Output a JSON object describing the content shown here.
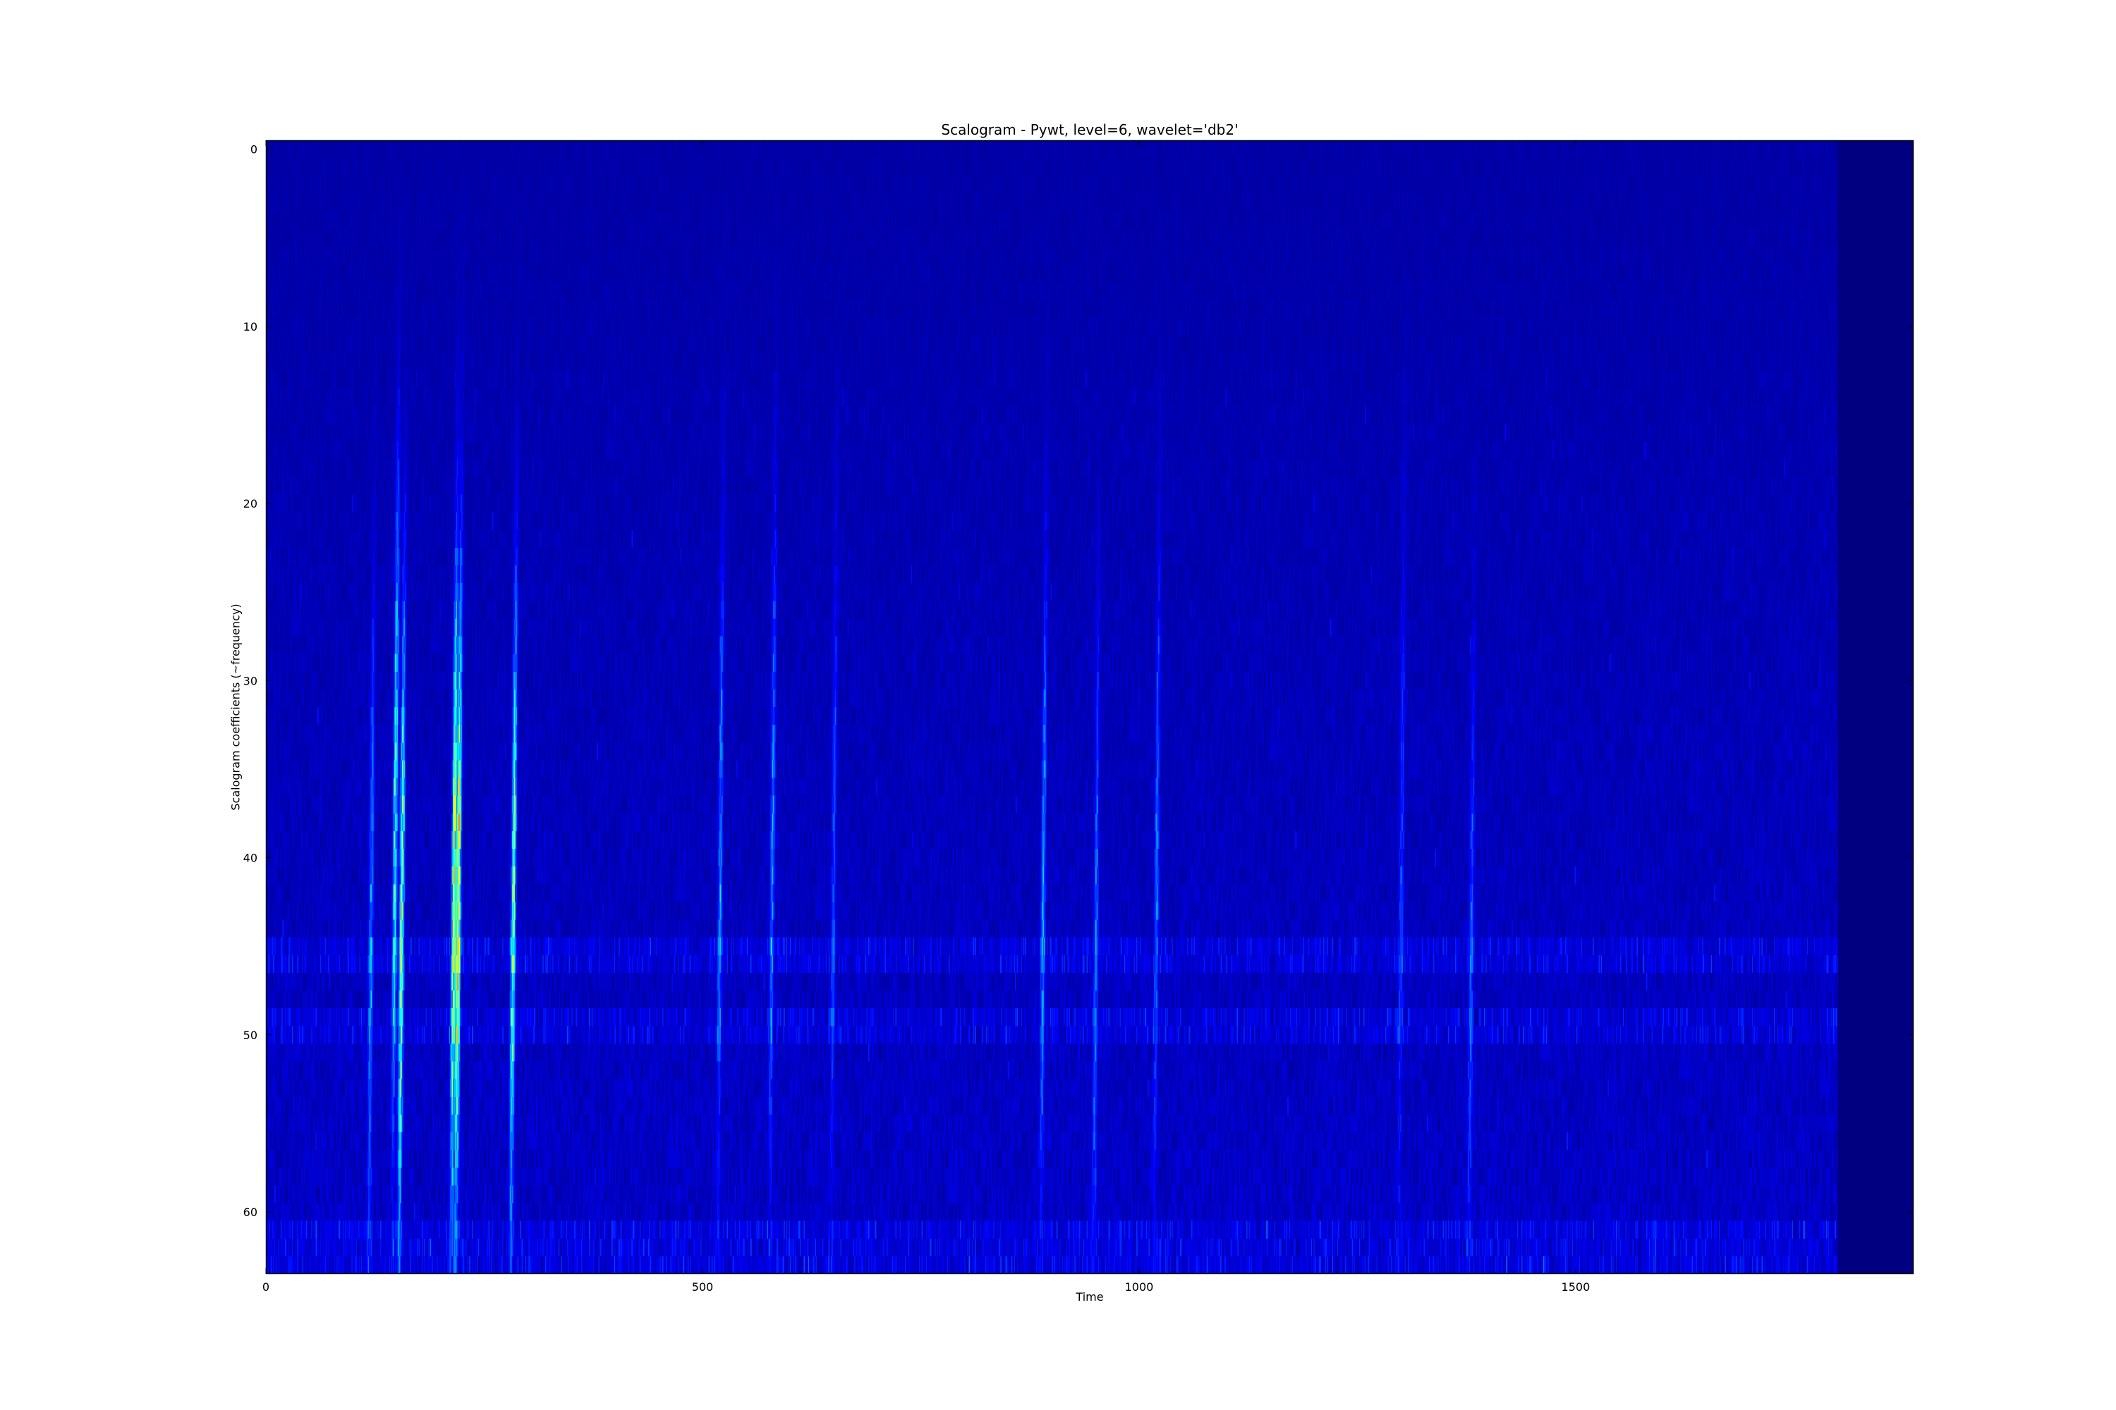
{
  "chart_data": {
    "type": "heatmap",
    "title": "Scalogram - Pywt, level=6, wavelet='db2'",
    "xlabel": "Time",
    "ylabel": "Scalogram coefficients (~frequency)",
    "xlim": [
      0,
      1887
    ],
    "ylim": [
      63.5,
      -0.5
    ],
    "y_inverted": true,
    "rows": 64,
    "colormap": "jet",
    "value_range": [
      0,
      1
    ],
    "xticks": [
      0,
      500,
      1000,
      1500
    ],
    "xtick_labels": [
      "0",
      "500",
      "1000",
      "1500"
    ],
    "yticks": [
      0,
      10,
      20,
      30,
      40,
      50,
      60
    ],
    "ytick_labels": [
      "0",
      "10",
      "20",
      "30",
      "40",
      "50",
      "60"
    ],
    "active_time_range": [
      0,
      1800
    ],
    "bright_rows": [
      45,
      46,
      49,
      50,
      61,
      62,
      63
    ],
    "ridges": [
      {
        "time": 148,
        "peak_row": 37,
        "peak_value": 0.5
      },
      {
        "time": 155,
        "peak_row": 44,
        "peak_value": 0.65
      },
      {
        "time": 215,
        "peak_row": 41,
        "peak_value": 0.7
      },
      {
        "time": 220,
        "peak_row": 43,
        "peak_value": 0.75
      },
      {
        "time": 283,
        "peak_row": 43,
        "peak_value": 0.6
      },
      {
        "time": 120,
        "peak_row": 44,
        "peak_value": 0.3
      },
      {
        "time": 520,
        "peak_row": 40,
        "peak_value": 0.3
      },
      {
        "time": 580,
        "peak_row": 38,
        "peak_value": 0.3
      },
      {
        "time": 650,
        "peak_row": 40,
        "peak_value": 0.2
      },
      {
        "time": 890,
        "peak_row": 41,
        "peak_value": 0.3
      },
      {
        "time": 950,
        "peak_row": 45,
        "peak_value": 0.25
      },
      {
        "time": 1020,
        "peak_row": 40,
        "peak_value": 0.25
      },
      {
        "time": 1300,
        "peak_row": 40,
        "peak_value": 0.2
      },
      {
        "time": 1380,
        "peak_row": 45,
        "peak_value": 0.2
      }
    ],
    "grid": false,
    "legend": "none"
  }
}
